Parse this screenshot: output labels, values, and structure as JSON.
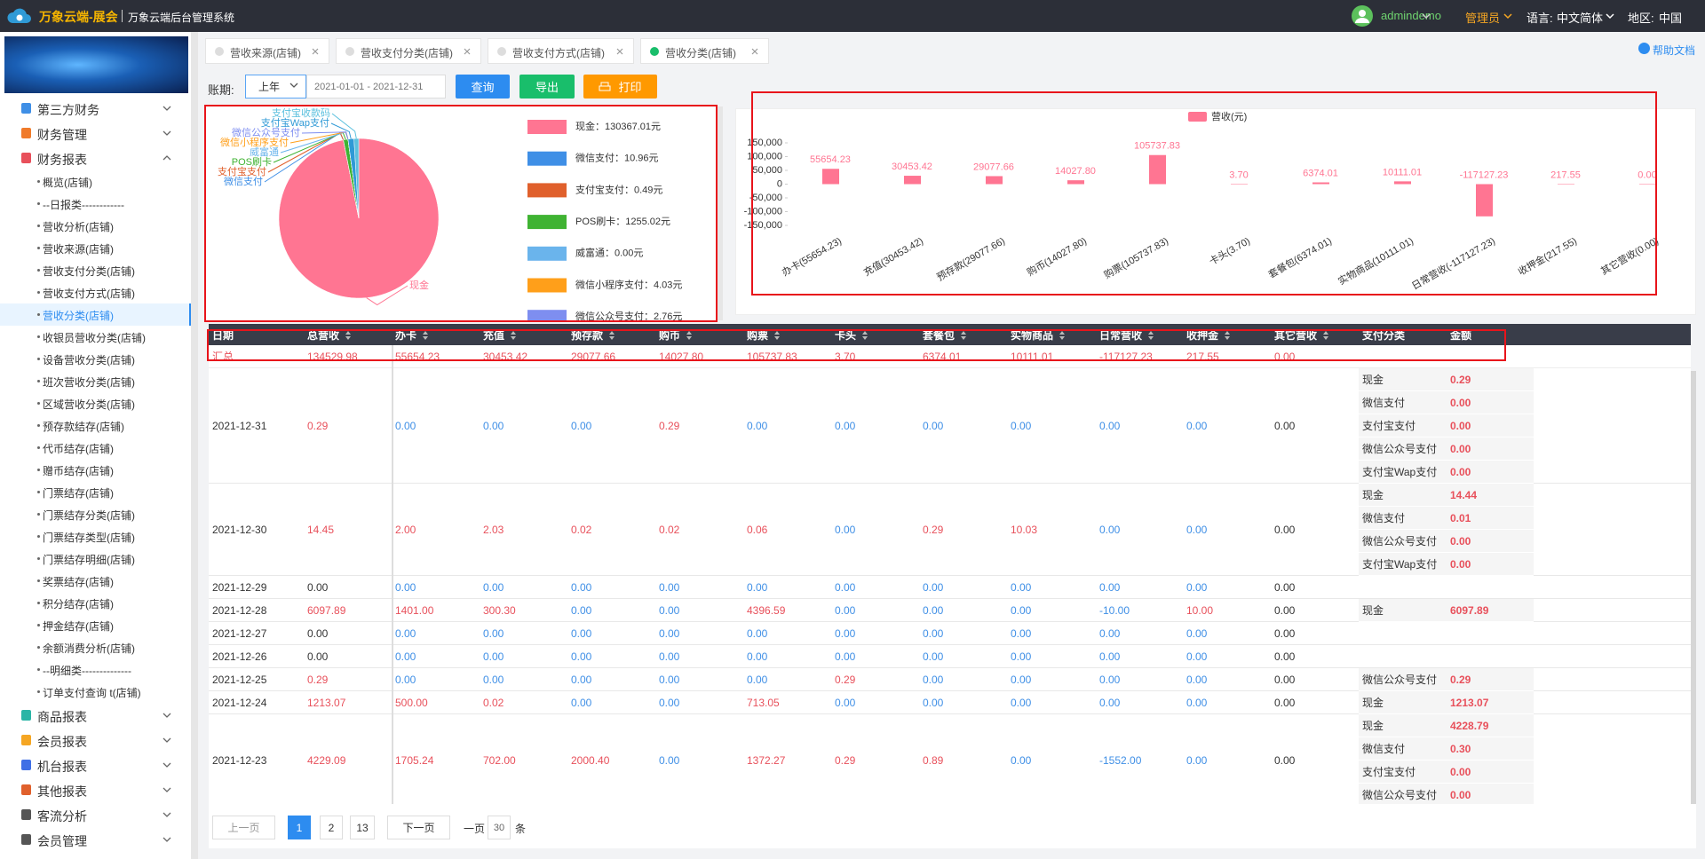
{
  "header": {
    "brand": "万象云端-展会",
    "system": "万象云端后台管理系统",
    "user": "admindemo",
    "role": "管理员",
    "lang_label": "语言:",
    "lang": "中文简体",
    "region_label": "地区:",
    "region": "中国"
  },
  "sidebar": {
    "menu": [
      {
        "label": "第三方财务",
        "color": "#3f8fe6"
      },
      {
        "label": "财务管理",
        "color": "#f07b2b"
      },
      {
        "label": "财务报表",
        "color": "#e8505b",
        "items": [
          {
            "label": "概览(店铺)"
          },
          {
            "label": "--日报类------------"
          },
          {
            "label": "营收分析(店铺)"
          },
          {
            "label": "营收来源(店铺)"
          },
          {
            "label": "营收支付分类(店铺)"
          },
          {
            "label": "营收支付方式(店铺)"
          },
          {
            "label": "营收分类(店铺)",
            "active": true
          },
          {
            "label": "收银员营收分类(店铺)"
          },
          {
            "label": "设备营收分类(店铺)"
          },
          {
            "label": "班次营收分类(店铺)"
          },
          {
            "label": "区域营收分类(店铺)"
          },
          {
            "label": "预存款结存(店铺)"
          },
          {
            "label": "代币结存(店铺)"
          },
          {
            "label": "赠币结存(店铺)"
          },
          {
            "label": "门票结存(店铺)"
          },
          {
            "label": "门票结存分类(店铺)"
          },
          {
            "label": "门票结存类型(店铺)"
          },
          {
            "label": "门票结存明细(店铺)"
          },
          {
            "label": "奖票结存(店铺)"
          },
          {
            "label": "积分结存(店铺)"
          },
          {
            "label": "押金结存(店铺)"
          },
          {
            "label": "余额消费分析(店铺)"
          },
          {
            "label": "--明细类--------------"
          },
          {
            "label": "订单支付查询 t(店铺)"
          }
        ]
      },
      {
        "label": "商品报表",
        "color": "#2bb5a6"
      },
      {
        "label": "会员报表",
        "color": "#f5a623"
      },
      {
        "label": "机台报表",
        "color": "#3f6fe6"
      },
      {
        "label": "其他报表",
        "color": "#e0602c"
      },
      {
        "label": "客流分析",
        "color": "#555555"
      },
      {
        "label": "会员管理",
        "color": "#555555"
      }
    ]
  },
  "tabs": [
    {
      "label": "营收来源(店铺)"
    },
    {
      "label": "营收支付分类(店铺)"
    },
    {
      "label": "营收支付方式(店铺)"
    },
    {
      "label": "营收分类(店铺)",
      "active": true
    }
  ],
  "help": "帮助文档",
  "toolbar": {
    "label": "账期:",
    "period": "上年",
    "range": "2021-01-01 - 2021-12-31",
    "query": "查询",
    "export": "导出",
    "print": "打印"
  },
  "pie": {
    "slices": [
      {
        "name": "现金",
        "value": 130367.01,
        "value_label": "现金：130367.01元",
        "color": "#ff7592"
      },
      {
        "name": "微信支付",
        "value": 10.96,
        "value_label": "微信支付：10.96元",
        "color": "#3f8fe6"
      },
      {
        "name": "支付宝支付",
        "value": 0.49,
        "value_label": "支付宝支付：0.49元",
        "color": "#e0602c"
      },
      {
        "name": "POS刷卡",
        "value": 1255.02,
        "value_label": "POS刷卡：1255.02元",
        "color": "#3fb332"
      },
      {
        "name": "威富通",
        "value": 0,
        "value_label": "威富通：0.00元",
        "color": "#6ab4ec"
      },
      {
        "name": "微信小程序支付",
        "value": 4.03,
        "value_label": "微信小程序支付：4.03元",
        "color": "#ff9f1a"
      },
      {
        "name": "微信公众号支付",
        "value": 2.76,
        "value_label": "微信公众号支付：2.76元",
        "color": "#7e8ef0"
      },
      {
        "name": "支付宝Wap支付",
        "value": 1600,
        "color": "#2f9ad6"
      },
      {
        "name": "支付宝收款码",
        "value": 1289.71,
        "color": "#5bc0de"
      }
    ]
  },
  "bar": {
    "legend": "营收(元)",
    "color": "#ff7592",
    "categories": [
      "办卡(55654.23)",
      "充值(30453.42)",
      "预存款(29077.66)",
      "购币(14027.80)",
      "购票(105737.83)",
      "卡头(3.70)",
      "套餐包(6374.01)",
      "实物商品(10111.01)",
      "日常营收(-117127.23)",
      "收押金(217.55)",
      "其它营收(0.00)"
    ],
    "values": [
      55654.23,
      30453.42,
      29077.66,
      14027.8,
      105737.83,
      3.7,
      6374.01,
      10111.01,
      -117127.23,
      217.55,
      0
    ],
    "value_labels": [
      "55654.23",
      "30453.42",
      "29077.66",
      "14027.80",
      "105737.83",
      "3.70",
      "6374.01",
      "10111.01",
      "-117127.23",
      "217.55",
      "0.00"
    ],
    "ylim": [
      -150000,
      150000
    ],
    "yticks": [
      {
        "value": 150000,
        "label": "150,000"
      },
      {
        "value": 100000,
        "label": "100,000"
      },
      {
        "value": 50000,
        "label": "50,000"
      },
      0,
      {
        "value": -50000,
        "label": "-50,000"
      },
      {
        "value": -100000,
        "label": "-100,000"
      },
      {
        "value": -150000,
        "label": "-150,000"
      }
    ]
  },
  "table": {
    "columns": [
      "日期",
      "总营收",
      "办卡",
      "充值",
      "预存款",
      "购币",
      "购票",
      "卡头",
      "套餐包",
      "实物商品",
      "日常营收",
      "收押金",
      "其它营收",
      "支付分类",
      "金额"
    ],
    "summary": {
      "label": "汇总",
      "cells": [
        "134529.98",
        "55654.23",
        "30453.42",
        "29077.66",
        "14027.80",
        "105737.83",
        "3.70",
        "6374.01",
        "10111.01",
        "-117127.23",
        "217.55",
        "0.00"
      ]
    },
    "rows": [
      {
        "date": "2021-12-31",
        "cells": [
          "0.29",
          "0.00",
          "0.00",
          "0.00",
          "0.29",
          "0.00",
          "0.00",
          "0.00",
          "0.00",
          "0.00",
          "0.00",
          "0.00"
        ],
        "pay": [
          {
            "type": "现金",
            "amount": "0.29"
          },
          {
            "type": "微信支付",
            "amount": "0.00"
          },
          {
            "type": "支付宝支付",
            "amount": "0.00"
          },
          {
            "type": "微信公众号支付",
            "amount": "0.00"
          },
          {
            "type": "支付宝Wap支付",
            "amount": "0.00"
          }
        ]
      },
      {
        "date": "2021-12-30",
        "cells": [
          "14.45",
          "2.00",
          "2.03",
          "0.02",
          "0.02",
          "0.06",
          "0.00",
          "0.29",
          "10.03",
          "0.00",
          "0.00",
          "0.00"
        ],
        "pay": [
          {
            "type": "现金",
            "amount": "14.44"
          },
          {
            "type": "微信支付",
            "amount": "0.01"
          },
          {
            "type": "微信公众号支付",
            "amount": "0.00"
          },
          {
            "type": "支付宝Wap支付",
            "amount": "0.00"
          }
        ]
      },
      {
        "date": "2021-12-29",
        "cells": [
          "0.00",
          "0.00",
          "0.00",
          "0.00",
          "0.00",
          "0.00",
          "0.00",
          "0.00",
          "0.00",
          "0.00",
          "0.00",
          "0.00"
        ],
        "pay": []
      },
      {
        "date": "2021-12-28",
        "cells": [
          "6097.89",
          "1401.00",
          "300.30",
          "0.00",
          "0.00",
          "4396.59",
          "0.00",
          "0.00",
          "0.00",
          "-10.00",
          "10.00",
          "0.00"
        ],
        "pay": [
          {
            "type": "现金",
            "amount": "6097.89"
          }
        ]
      },
      {
        "date": "2021-12-27",
        "cells": [
          "0.00",
          "0.00",
          "0.00",
          "0.00",
          "0.00",
          "0.00",
          "0.00",
          "0.00",
          "0.00",
          "0.00",
          "0.00",
          "0.00"
        ],
        "pay": []
      },
      {
        "date": "2021-12-26",
        "cells": [
          "0.00",
          "0.00",
          "0.00",
          "0.00",
          "0.00",
          "0.00",
          "0.00",
          "0.00",
          "0.00",
          "0.00",
          "0.00",
          "0.00"
        ],
        "pay": []
      },
      {
        "date": "2021-12-25",
        "cells": [
          "0.29",
          "0.00",
          "0.00",
          "0.00",
          "0.00",
          "0.00",
          "0.29",
          "0.00",
          "0.00",
          "0.00",
          "0.00",
          "0.00"
        ],
        "pay": [
          {
            "type": "微信公众号支付",
            "amount": "0.29"
          }
        ]
      },
      {
        "date": "2021-12-24",
        "cells": [
          "1213.07",
          "500.00",
          "0.02",
          "0.00",
          "0.00",
          "713.05",
          "0.00",
          "0.00",
          "0.00",
          "0.00",
          "0.00",
          "0.00"
        ],
        "pay": [
          {
            "type": "现金",
            "amount": "1213.07"
          }
        ]
      },
      {
        "date": "2021-12-23",
        "cells": [
          "4229.09",
          "1705.24",
          "702.00",
          "2000.40",
          "0.00",
          "1372.27",
          "0.29",
          "0.89",
          "0.00",
          "-1552.00",
          "0.00",
          "0.00"
        ],
        "pay": [
          {
            "type": "现金",
            "amount": "4228.79"
          },
          {
            "type": "微信支付",
            "amount": "0.30"
          },
          {
            "type": "支付宝支付",
            "amount": "0.00"
          },
          {
            "type": "微信公众号支付",
            "amount": "0.00"
          }
        ]
      }
    ]
  },
  "pagination": {
    "prev": "上一页",
    "pages": [
      "1",
      "2",
      "13"
    ],
    "next": "下一页",
    "size_label": "一页",
    "size": "30",
    "unit": "条"
  }
}
